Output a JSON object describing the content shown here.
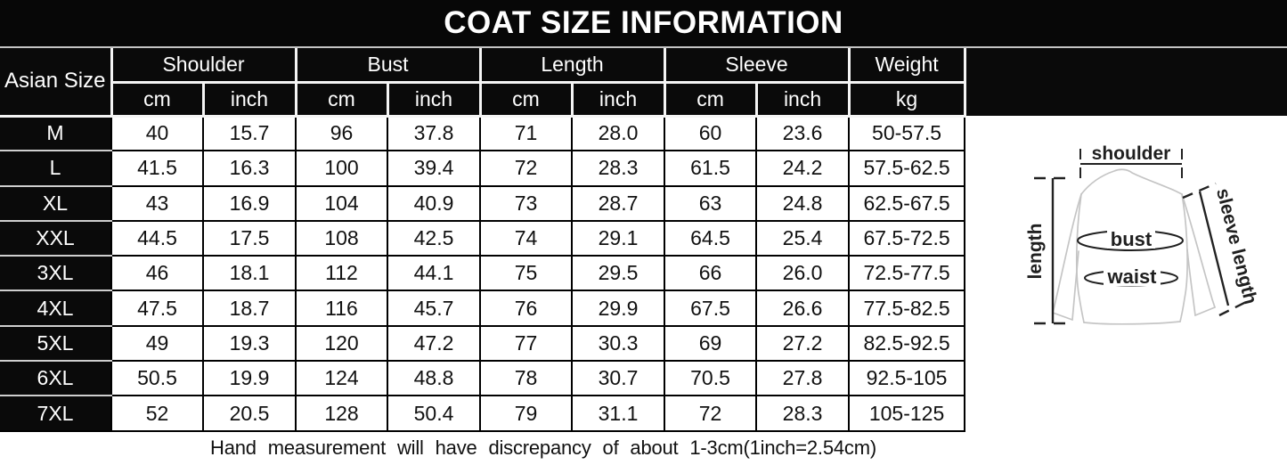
{
  "title": "COAT SIZE INFORMATION",
  "table": {
    "corner_label": "Asian Size",
    "groups": [
      {
        "label": "Shoulder",
        "units": [
          "cm",
          "inch"
        ]
      },
      {
        "label": "Bust",
        "units": [
          "cm",
          "inch"
        ]
      },
      {
        "label": "Length",
        "units": [
          "cm",
          "inch"
        ]
      },
      {
        "label": "Sleeve",
        "units": [
          "cm",
          "inch"
        ]
      },
      {
        "label": "Weight",
        "units": [
          "kg"
        ]
      }
    ],
    "rows": [
      {
        "size": "M",
        "values": [
          "40",
          "15.7",
          "96",
          "37.8",
          "71",
          "28.0",
          "60",
          "23.6",
          "50-57.5"
        ]
      },
      {
        "size": "L",
        "values": [
          "41.5",
          "16.3",
          "100",
          "39.4",
          "72",
          "28.3",
          "61.5",
          "24.2",
          "57.5-62.5"
        ]
      },
      {
        "size": "XL",
        "values": [
          "43",
          "16.9",
          "104",
          "40.9",
          "73",
          "28.7",
          "63",
          "24.8",
          "62.5-67.5"
        ]
      },
      {
        "size": "XXL",
        "values": [
          "44.5",
          "17.5",
          "108",
          "42.5",
          "74",
          "29.1",
          "64.5",
          "25.4",
          "67.5-72.5"
        ]
      },
      {
        "size": "3XL",
        "values": [
          "46",
          "18.1",
          "112",
          "44.1",
          "75",
          "29.5",
          "66",
          "26.0",
          "72.5-77.5"
        ]
      },
      {
        "size": "4XL",
        "values": [
          "47.5",
          "18.7",
          "116",
          "45.7",
          "76",
          "29.9",
          "67.5",
          "26.6",
          "77.5-82.5"
        ]
      },
      {
        "size": "5XL",
        "values": [
          "49",
          "19.3",
          "120",
          "47.2",
          "77",
          "30.3",
          "69",
          "27.2",
          "82.5-92.5"
        ]
      },
      {
        "size": "6XL",
        "values": [
          "50.5",
          "19.9",
          "124",
          "48.8",
          "78",
          "30.7",
          "70.5",
          "27.8",
          "92.5-105"
        ]
      },
      {
        "size": "7XL",
        "values": [
          "52",
          "20.5",
          "128",
          "50.4",
          "79",
          "31.1",
          "72",
          "28.3",
          "105-125"
        ]
      }
    ]
  },
  "footnote": "Hand measurement will have discrepancy of about 1-3cm(1inch=2.54cm)",
  "diagram": {
    "shoulder_label": "shoulder",
    "length_label": "length",
    "sleeve_length_label": "sleeve length",
    "bust_label": "bust",
    "waist_label": "waist"
  },
  "colors": {
    "header_background": "#0a0a0a",
    "header_text": "#ffffff",
    "cell_background": "#ffffff",
    "cell_text": "#111111",
    "coat_outline": "#c5c5c5",
    "measure_line": "#222222"
  }
}
